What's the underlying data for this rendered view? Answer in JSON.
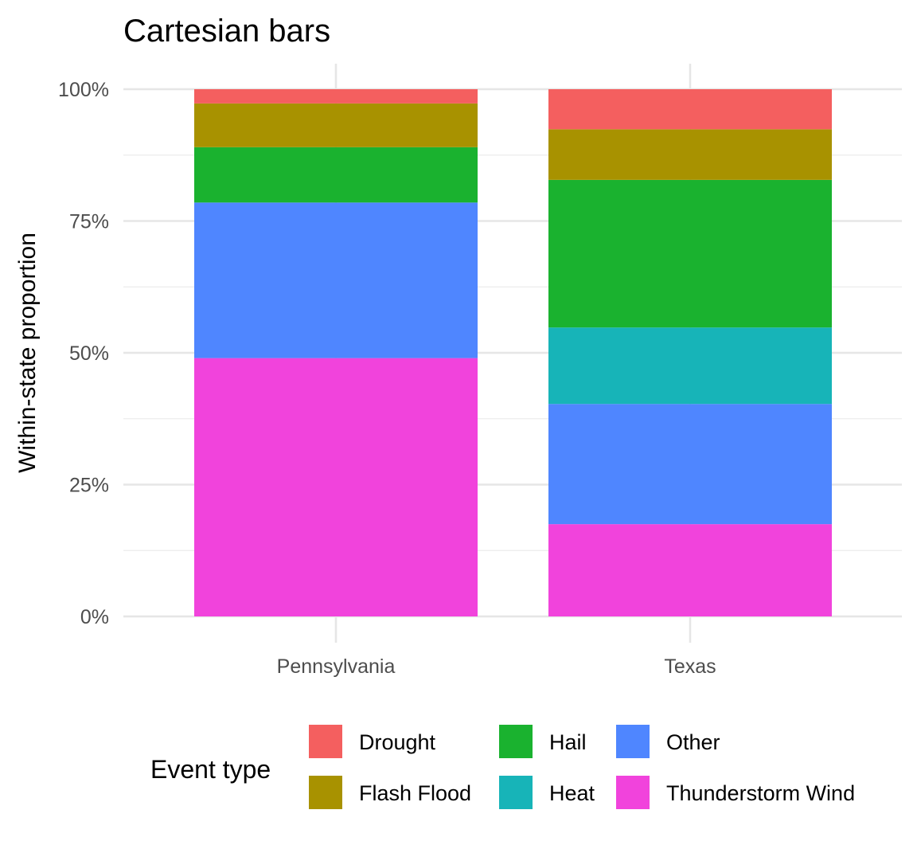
{
  "chart_data": {
    "type": "bar",
    "stacked": true,
    "title": "Cartesian bars",
    "ylabel": "Within-state proportion",
    "xlabel": "",
    "ylim": [
      0,
      1
    ],
    "yticks": [
      {
        "value": 0,
        "label": "0%"
      },
      {
        "value": 0.25,
        "label": "25%"
      },
      {
        "value": 0.5,
        "label": "50%"
      },
      {
        "value": 0.75,
        "label": "75%"
      },
      {
        "value": 1,
        "label": "100%"
      }
    ],
    "grid": true,
    "legend_position": "bottom",
    "legend_title": "Event type",
    "categories": [
      "Pennsylvania",
      "Texas"
    ],
    "series": [
      {
        "name": "Thunderstorm Wind",
        "color": "#F143DC",
        "values": [
          0.49,
          0.175
        ]
      },
      {
        "name": "Other",
        "color": "#4F86FF",
        "values": [
          0.295,
          0.228
        ]
      },
      {
        "name": "Heat",
        "color": "#17B4B8",
        "values": [
          0,
          0.145
        ]
      },
      {
        "name": "Hail",
        "color": "#1AB22F",
        "values": [
          0.105,
          0.28
        ]
      },
      {
        "name": "Flash Flood",
        "color": "#A89200",
        "values": [
          0.083,
          0.096
        ]
      },
      {
        "name": "Drought",
        "color": "#F45F5F",
        "values": [
          0.027,
          0.076
        ]
      }
    ],
    "legend_order": [
      "Drought",
      "Flash Flood",
      "Hail",
      "Heat",
      "Other",
      "Thunderstorm Wind"
    ]
  }
}
